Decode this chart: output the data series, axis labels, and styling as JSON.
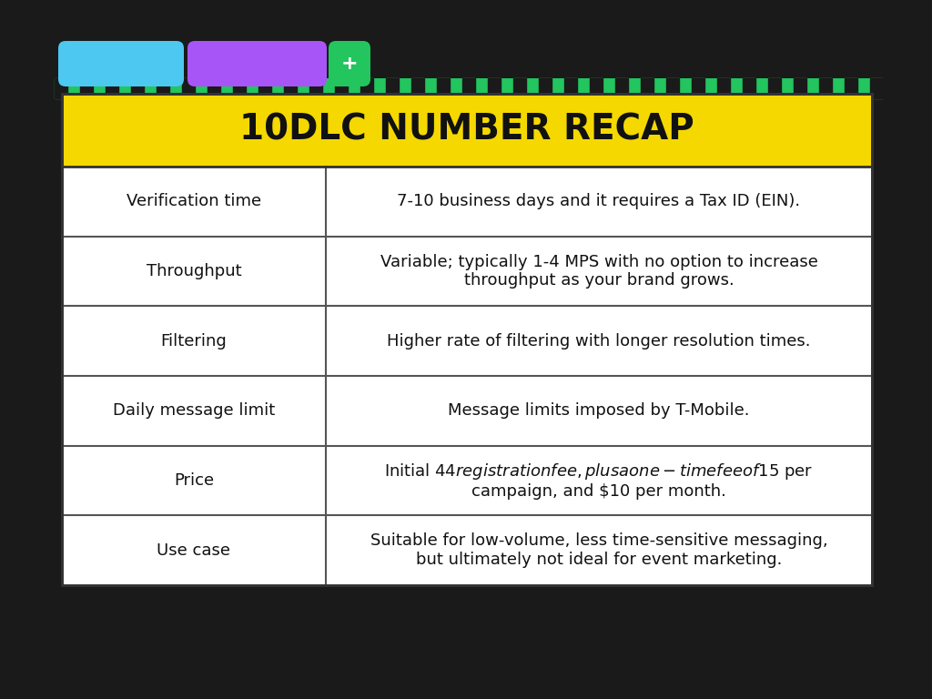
{
  "title": "10DLC NUMBER RECAP",
  "title_bg_color": "#F5D800",
  "title_text_color": "#111111",
  "table_bg_color": "#FFFFFF",
  "outer_bg_color": "#1a1a1a",
  "border_color": "#222222",
  "row_labels": [
    "Verification time",
    "Throughput",
    "Filtering",
    "Daily message limit",
    "Price",
    "Use case"
  ],
  "row_values": [
    "7-10 business days and it requires a Tax ID (EIN).",
    "Variable; typically 1-4 MPS with no option to increase\nthroughput as your brand grows.",
    "Higher rate of filtering with longer resolution times.",
    "Message limits imposed by T-Mobile.",
    "Initial $44 registration fee, plus a one-time fee of $15 per\ncampaign, and $10 per month.",
    "Suitable for low-volume, less time-sensitive messaging,\nbut ultimately not ideal for event marketing."
  ],
  "tab_colors": [
    "#4DC8F0",
    "#A855F7",
    "#22C55E"
  ],
  "tab_labels": [
    "",
    "",
    "+"
  ],
  "stripe_color_1": "#22C55E",
  "stripe_color_2": "#1a1a1a",
  "label_fontsize": 13,
  "value_fontsize": 13,
  "title_fontsize": 28
}
